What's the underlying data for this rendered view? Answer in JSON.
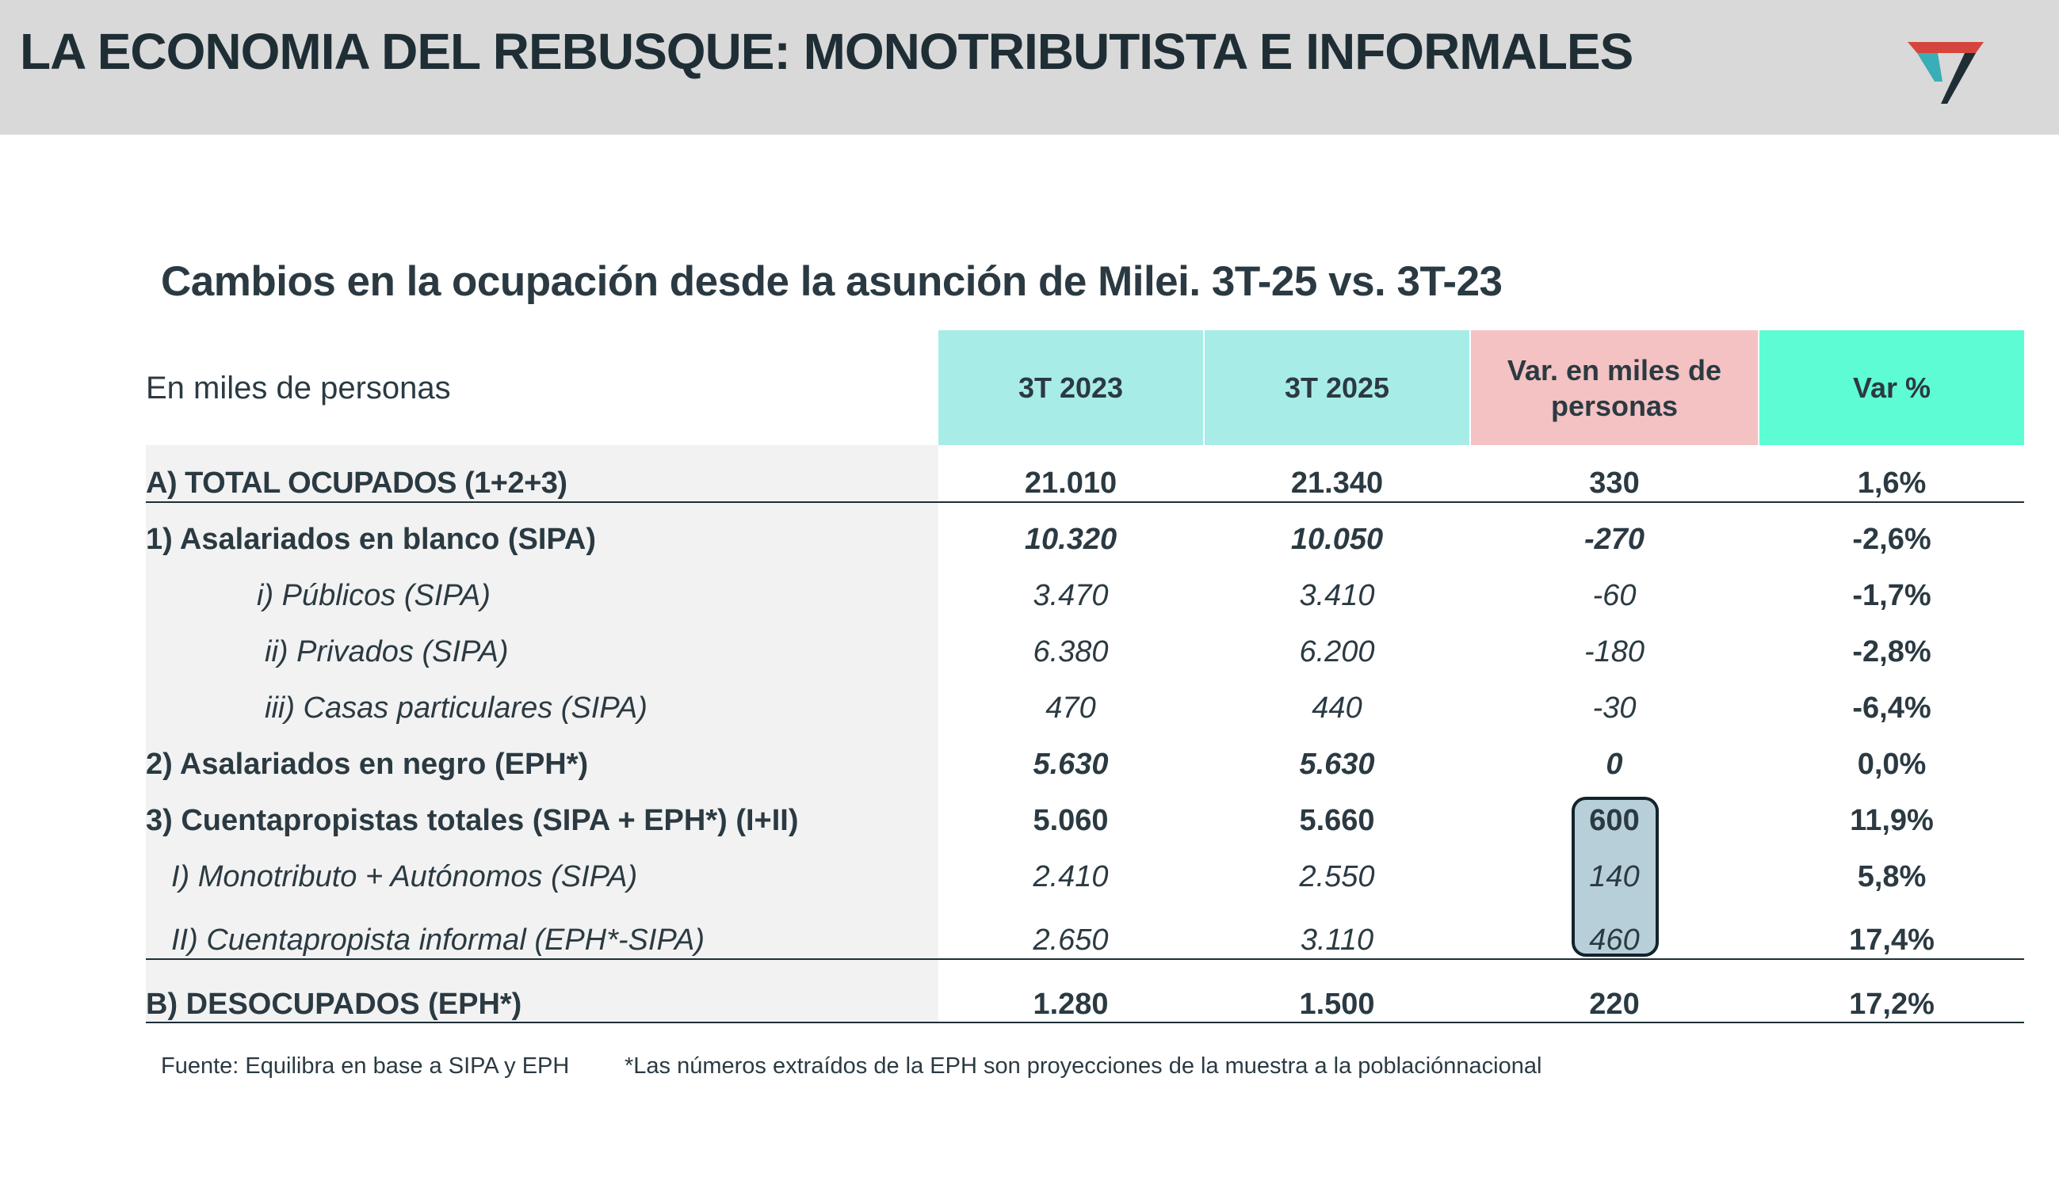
{
  "header": {
    "title": "LA ECONOMIA DEL REBUSQUE: MONOTRIBUTISTA E INFORMALES"
  },
  "colors": {
    "header_bg": "#d9d9d9",
    "col_2023": "#a8ece8",
    "col_2025": "#a8ece8",
    "col_var_abs": "#f4c2c2",
    "col_var_pct": "#5efcd4",
    "highlight": "#b7cfd9"
  },
  "logo": {
    "icon": "teal-red-v-logo-icon"
  },
  "table": {
    "title": "Cambios en la ocupación desde la asunción de Milei. 3T-25 vs. 3T-23",
    "unit_label": "En miles de personas",
    "headers": [
      "3T 2023",
      "3T 2025",
      "Var. en miles de personas",
      "Var %"
    ],
    "rows": [
      {
        "label": "A) TOTAL OCUPADOS (1+2+3)",
        "v2023": "21.010",
        "v2025": "21.340",
        "var_abs": "330",
        "var_pct": "1,6%"
      },
      {
        "label": "1) Asalariados en blanco (SIPA)",
        "v2023": "10.320",
        "v2025": "10.050",
        "var_abs": "-270",
        "var_pct": "-2,6%"
      },
      {
        "label": "i) Públicos (SIPA)",
        "v2023": "3.470",
        "v2025": "3.410",
        "var_abs": "-60",
        "var_pct": "-1,7%"
      },
      {
        "label": "ii) Privados (SIPA)",
        "v2023": "6.380",
        "v2025": "6.200",
        "var_abs": "-180",
        "var_pct": "-2,8%"
      },
      {
        "label": "iii) Casas particulares (SIPA)",
        "v2023": "470",
        "v2025": "440",
        "var_abs": "-30",
        "var_pct": "-6,4%"
      },
      {
        "label": "2) Asalariados en negro (EPH*)",
        "v2023": "5.630",
        "v2025": "5.630",
        "var_abs": "0",
        "var_pct": "0,0%"
      },
      {
        "label": "3) Cuentapropistas totales (SIPA + EPH*) (I+II)",
        "v2023": "5.060",
        "v2025": "5.660",
        "var_abs": "600",
        "var_pct": "11,9%"
      },
      {
        "label": "I) Monotributo + Autónomos (SIPA)",
        "v2023": "2.410",
        "v2025": "2.550",
        "var_abs": "140",
        "var_pct": "5,8%"
      },
      {
        "label": "II) Cuentapropista informal (EPH*-SIPA)",
        "v2023": "2.650",
        "v2025": "3.110",
        "var_abs": "460",
        "var_pct": "17,4%"
      },
      {
        "label": "B) DESOCUPADOS (EPH*)",
        "v2023": "1.280",
        "v2025": "1.500",
        "var_abs": "220",
        "var_pct": "17,2%"
      }
    ]
  },
  "footer": {
    "source": "Fuente: Equilibra en base a SIPA y EPH",
    "note": "*Las números extraídos de la EPH son proyecciones de la muestra a la poblaciónnacional"
  }
}
